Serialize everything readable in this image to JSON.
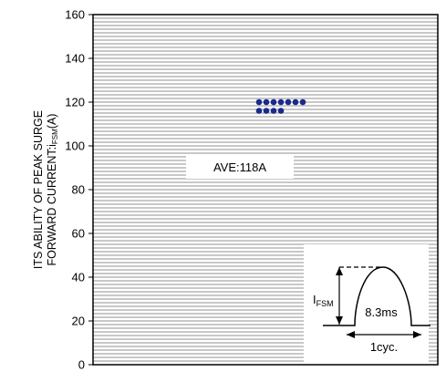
{
  "chart_data": {
    "type": "scatter",
    "ylim": [
      0,
      160
    ],
    "yticks": [
      0,
      20,
      40,
      60,
      80,
      100,
      120,
      140,
      160
    ],
    "ylabel_line1": "ITS ABILITY OF PEAK SURGE",
    "ylabel_line2_prefix": "FORWARD CURRENT",
    "ylabel_line2_colon": ":",
    "ylabel_i": "i",
    "ylabel_sub": "FSM",
    "ylabel_unit": "(A)",
    "annotation": "AVE:118A",
    "grid": "horizontal",
    "points": [
      {
        "x": 1,
        "y": 120
      },
      {
        "x": 2,
        "y": 120
      },
      {
        "x": 3,
        "y": 120
      },
      {
        "x": 4,
        "y": 120
      },
      {
        "x": 5,
        "y": 120
      },
      {
        "x": 6,
        "y": 120
      },
      {
        "x": 7,
        "y": 120
      },
      {
        "x": 1,
        "y": 116
      },
      {
        "x": 2,
        "y": 116
      },
      {
        "x": 3,
        "y": 116
      },
      {
        "x": 4,
        "y": 116
      }
    ],
    "point_color": "#1a2a8c",
    "inset": {
      "current_label": "I",
      "current_sub": "FSM",
      "time_label": "8.3ms",
      "cycle_label": "1cyc."
    }
  }
}
